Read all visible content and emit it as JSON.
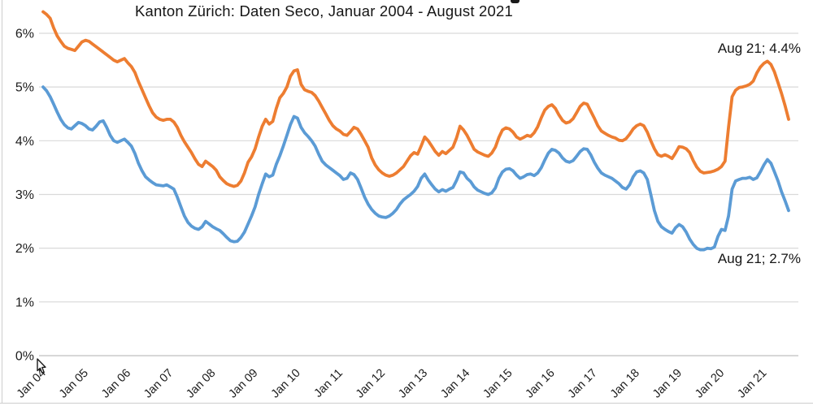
{
  "colors": {
    "background": "#ffffff",
    "gridline": "#d9d9d9",
    "axis_line": "#bfbfbf",
    "text": "#151515",
    "series_orange": "#ED7D31",
    "series_blue": "#5B9BD5"
  },
  "chart_data": {
    "type": "line",
    "title": "Kanton Zürich: Daten Seco, Januar 2004 - August 2021",
    "x_unit": "month",
    "x_range_label": "Januar 2004 - August 2021",
    "x_tick_labels": [
      "Jan 04",
      "Jan 05",
      "Jan 06",
      "Jan 07",
      "Jan 08",
      "Jan 09",
      "Jan 10",
      "Jan 11",
      "Jan 12",
      "Jan 13",
      "Jan 14",
      "Jan 15",
      "Jan 16",
      "Jan 17",
      "Jan 18",
      "Jan 19",
      "Jan 20",
      "Jan 21"
    ],
    "y_tick_labels": [
      "0%",
      "1%",
      "2%",
      "3%",
      "4%",
      "5%",
      "6%"
    ],
    "y_ticks": [
      0,
      1,
      2,
      3,
      4,
      5,
      6
    ],
    "ylim": [
      0,
      6.6
    ],
    "grid": "horizontal",
    "legend": "none",
    "annotations": [
      {
        "text": "Aug 21; 4.4%",
        "series": "orange",
        "position": "end-of-line"
      },
      {
        "text": "Aug 21; 2.7%",
        "series": "blue",
        "position": "end-of-line"
      }
    ],
    "series": [
      {
        "id": "orange",
        "color": "#ED7D31",
        "end_label": "Aug 21; 4.4%",
        "last_value": 4.4,
        "values": [
          6.4,
          6.35,
          6.28,
          6.1,
          5.95,
          5.85,
          5.76,
          5.72,
          5.7,
          5.68,
          5.76,
          5.84,
          5.87,
          5.85,
          5.8,
          5.75,
          5.7,
          5.65,
          5.6,
          5.55,
          5.5,
          5.47,
          5.5,
          5.53,
          5.45,
          5.38,
          5.27,
          5.1,
          4.95,
          4.8,
          4.65,
          4.52,
          4.44,
          4.4,
          4.38,
          4.4,
          4.4,
          4.35,
          4.25,
          4.1,
          3.98,
          3.88,
          3.78,
          3.66,
          3.56,
          3.52,
          3.62,
          3.57,
          3.52,
          3.45,
          3.33,
          3.26,
          3.2,
          3.17,
          3.15,
          3.17,
          3.25,
          3.4,
          3.6,
          3.7,
          3.85,
          4.07,
          4.27,
          4.4,
          4.31,
          4.36,
          4.6,
          4.8,
          4.88,
          5.0,
          5.2,
          5.3,
          5.32,
          5.05,
          4.95,
          4.92,
          4.9,
          4.84,
          4.74,
          4.62,
          4.5,
          4.38,
          4.28,
          4.22,
          4.18,
          4.12,
          4.1,
          4.17,
          4.25,
          4.22,
          4.12,
          4.0,
          3.88,
          3.68,
          3.55,
          3.46,
          3.4,
          3.36,
          3.34,
          3.36,
          3.4,
          3.46,
          3.52,
          3.62,
          3.72,
          3.78,
          3.75,
          3.9,
          4.07,
          4.0,
          3.9,
          3.8,
          3.73,
          3.8,
          3.76,
          3.82,
          3.88,
          4.05,
          4.27,
          4.2,
          4.1,
          3.97,
          3.84,
          3.79,
          3.76,
          3.73,
          3.71,
          3.77,
          3.88,
          4.06,
          4.2,
          4.24,
          4.22,
          4.16,
          4.07,
          4.03,
          4.06,
          4.1,
          4.08,
          4.15,
          4.26,
          4.43,
          4.57,
          4.64,
          4.67,
          4.6,
          4.48,
          4.38,
          4.33,
          4.35,
          4.41,
          4.52,
          4.64,
          4.7,
          4.68,
          4.55,
          4.42,
          4.28,
          4.18,
          4.14,
          4.1,
          4.07,
          4.05,
          4.01,
          4.0,
          4.04,
          4.12,
          4.22,
          4.28,
          4.31,
          4.28,
          4.16,
          4.0,
          3.85,
          3.74,
          3.71,
          3.74,
          3.71,
          3.67,
          3.77,
          3.89,
          3.88,
          3.85,
          3.78,
          3.63,
          3.51,
          3.43,
          3.4,
          3.41,
          3.42,
          3.44,
          3.47,
          3.52,
          3.62,
          4.25,
          4.82,
          4.94,
          4.99,
          5.0,
          5.02,
          5.05,
          5.11,
          5.26,
          5.37,
          5.44,
          5.48,
          5.42,
          5.28,
          5.08,
          4.88,
          4.65,
          4.4
        ]
      },
      {
        "id": "blue",
        "color": "#5B9BD5",
        "end_label": "Aug 21; 2.7%",
        "last_value": 2.7,
        "values": [
          5.0,
          4.93,
          4.82,
          4.68,
          4.53,
          4.4,
          4.3,
          4.24,
          4.22,
          4.28,
          4.34,
          4.32,
          4.28,
          4.22,
          4.2,
          4.27,
          4.35,
          4.37,
          4.25,
          4.1,
          4.0,
          3.97,
          4.0,
          4.03,
          3.97,
          3.9,
          3.76,
          3.58,
          3.44,
          3.33,
          3.27,
          3.22,
          3.18,
          3.17,
          3.16,
          3.18,
          3.14,
          3.1,
          2.95,
          2.77,
          2.6,
          2.48,
          2.41,
          2.37,
          2.35,
          2.4,
          2.5,
          2.45,
          2.4,
          2.36,
          2.33,
          2.27,
          2.2,
          2.14,
          2.12,
          2.13,
          2.2,
          2.3,
          2.45,
          2.6,
          2.77,
          3.0,
          3.2,
          3.38,
          3.33,
          3.36,
          3.56,
          3.72,
          3.9,
          4.1,
          4.3,
          4.45,
          4.42,
          4.25,
          4.15,
          4.08,
          4.0,
          3.9,
          3.75,
          3.62,
          3.55,
          3.5,
          3.45,
          3.4,
          3.35,
          3.28,
          3.3,
          3.4,
          3.37,
          3.28,
          3.12,
          2.95,
          2.82,
          2.72,
          2.65,
          2.6,
          2.58,
          2.57,
          2.6,
          2.65,
          2.72,
          2.82,
          2.9,
          2.95,
          3.0,
          3.06,
          3.15,
          3.3,
          3.38,
          3.27,
          3.18,
          3.1,
          3.05,
          3.09,
          3.06,
          3.1,
          3.13,
          3.26,
          3.42,
          3.4,
          3.3,
          3.24,
          3.14,
          3.08,
          3.05,
          3.02,
          3.0,
          3.03,
          3.12,
          3.3,
          3.42,
          3.47,
          3.48,
          3.44,
          3.36,
          3.3,
          3.33,
          3.37,
          3.38,
          3.35,
          3.4,
          3.5,
          3.64,
          3.77,
          3.84,
          3.82,
          3.77,
          3.68,
          3.62,
          3.6,
          3.63,
          3.71,
          3.8,
          3.85,
          3.84,
          3.74,
          3.6,
          3.49,
          3.4,
          3.36,
          3.33,
          3.3,
          3.25,
          3.2,
          3.13,
          3.1,
          3.18,
          3.33,
          3.42,
          3.44,
          3.4,
          3.28,
          3.0,
          2.7,
          2.5,
          2.4,
          2.35,
          2.31,
          2.28,
          2.38,
          2.44,
          2.4,
          2.3,
          2.17,
          2.07,
          2.0,
          1.97,
          1.97,
          2.0,
          1.99,
          2.02,
          2.22,
          2.35,
          2.33,
          2.6,
          3.1,
          3.25,
          3.28,
          3.3,
          3.3,
          3.32,
          3.28,
          3.31,
          3.42,
          3.55,
          3.65,
          3.58,
          3.42,
          3.25,
          3.05,
          2.88,
          2.7
        ]
      }
    ]
  }
}
